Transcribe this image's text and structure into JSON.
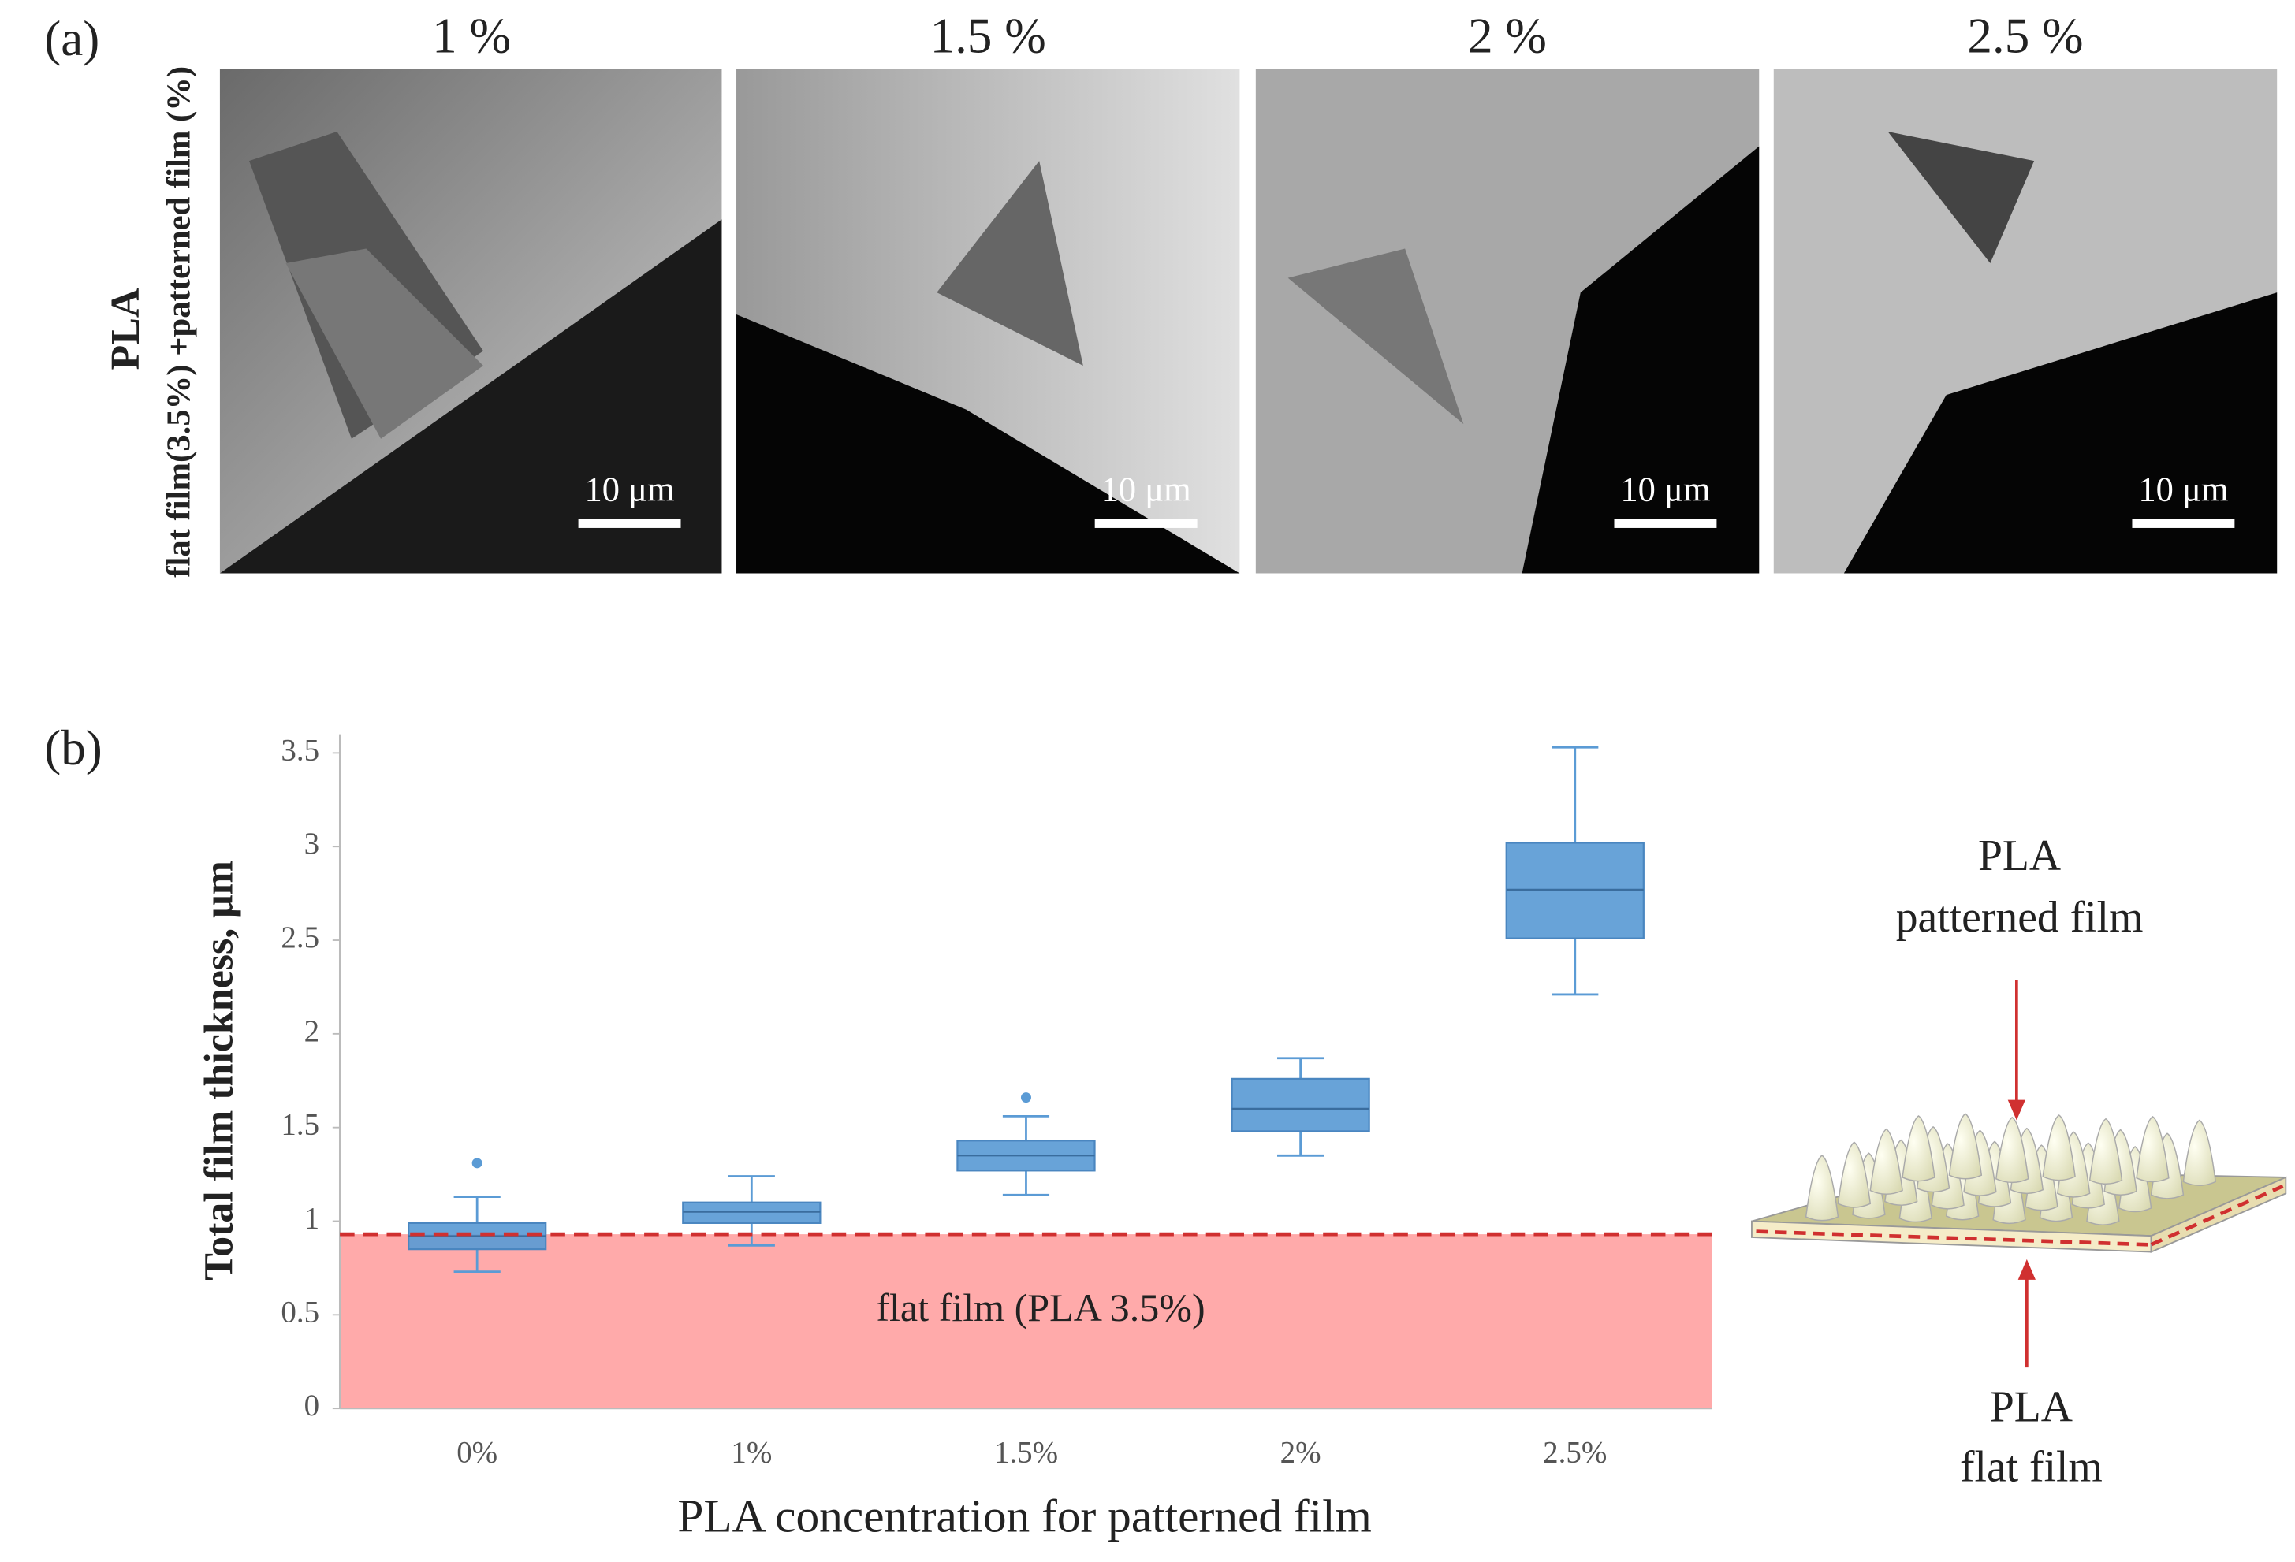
{
  "panel_a": {
    "label": "(a)",
    "row_label": [
      "PLA",
      "flat film(3.5%) +patterned film (%)"
    ],
    "columns": [
      "1 %",
      "1.5 %",
      "2 %",
      "2.5 %"
    ],
    "scale_bar": "10 μm"
  },
  "chart_data": {
    "type": "box",
    "panel_label": "(b)",
    "categories": [
      "0%",
      "1%",
      "1.5%",
      "2%",
      "2.5%"
    ],
    "boxes": [
      {
        "min": 0.73,
        "q1": 0.85,
        "median": 0.92,
        "q3": 0.99,
        "max": 1.13,
        "outliers": [
          1.31
        ]
      },
      {
        "min": 0.87,
        "q1": 0.99,
        "median": 1.05,
        "q3": 1.1,
        "max": 1.24,
        "outliers": []
      },
      {
        "min": 1.14,
        "q1": 1.27,
        "median": 1.35,
        "q3": 1.43,
        "max": 1.56,
        "outliers": [
          1.66
        ]
      },
      {
        "min": 1.35,
        "q1": 1.48,
        "median": 1.6,
        "q3": 1.76,
        "max": 1.87,
        "outliers": []
      },
      {
        "min": 2.21,
        "q1": 2.51,
        "median": 2.77,
        "q3": 3.02,
        "max": 3.53,
        "outliers": []
      }
    ],
    "color": "#5b9bd5",
    "ylim": [
      0,
      3.6
    ],
    "yticks": [
      0,
      0.5,
      1,
      1.5,
      2,
      2.5,
      3,
      3.5
    ],
    "ylabel": "Total film thickness, μm",
    "xlabel": "PLA concentration for patterned film",
    "reference": {
      "value": 0.93,
      "label": "flat film (PLA 3.5%)",
      "color": "#ffaaaa",
      "line_color": "#d03030"
    }
  },
  "illustration": {
    "top": [
      "PLA",
      "patterned film"
    ],
    "bottom": [
      "PLA",
      "flat film"
    ]
  }
}
